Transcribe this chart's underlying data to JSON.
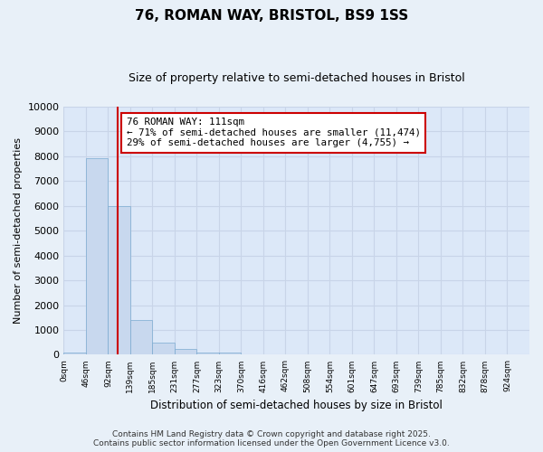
{
  "title": "76, ROMAN WAY, BRISTOL, BS9 1SS",
  "subtitle": "Size of property relative to semi-detached houses in Bristol",
  "xlabel": "Distribution of semi-detached houses by size in Bristol",
  "ylabel": "Number of semi-detached properties",
  "bin_labels": [
    "0sqm",
    "46sqm",
    "92sqm",
    "139sqm",
    "185sqm",
    "231sqm",
    "277sqm",
    "323sqm",
    "370sqm",
    "416sqm",
    "462sqm",
    "508sqm",
    "554sqm",
    "601sqm",
    "647sqm",
    "693sqm",
    "739sqm",
    "785sqm",
    "832sqm",
    "878sqm",
    "924sqm"
  ],
  "bar_heights": [
    100,
    7900,
    6000,
    1400,
    500,
    220,
    100,
    80,
    0,
    0,
    0,
    0,
    0,
    0,
    0,
    0,
    0,
    0,
    0,
    0,
    0
  ],
  "bar_color": "#c8d8ee",
  "bar_edgecolor": "#7aaad0",
  "property_line_color": "#cc0000",
  "annotation_text": "76 ROMAN WAY: 111sqm\n← 71% of semi-detached houses are smaller (11,474)\n29% of semi-detached houses are larger (4,755) →",
  "annotation_box_edgecolor": "#cc0000",
  "annotation_box_facecolor": "#ffffff",
  "ylim": [
    0,
    10000
  ],
  "yticks": [
    0,
    1000,
    2000,
    3000,
    4000,
    5000,
    6000,
    7000,
    8000,
    9000,
    10000
  ],
  "grid_color": "#c8d4e8",
  "plot_bg_color": "#dce8f8",
  "fig_bg_color": "#e8f0f8",
  "footer_text": "Contains HM Land Registry data © Crown copyright and database right 2025.\nContains public sector information licensed under the Open Government Licence v3.0.",
  "bin_width": 46,
  "prop_sqm": 111
}
